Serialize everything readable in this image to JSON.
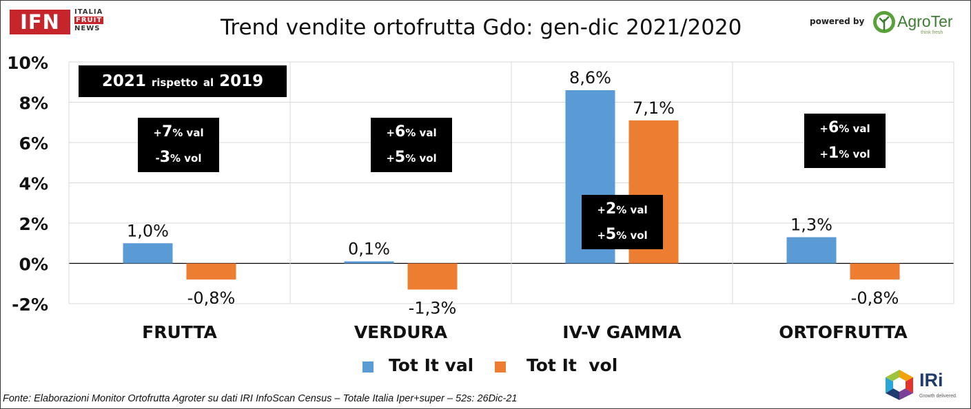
{
  "header": {
    "title": "Trend vendite ortofrutta Gdo: gen-dic 2021/2020",
    "logo_ifn": {
      "mark": "IFN",
      "line1": "ITALIA",
      "line2": "FRUIT",
      "line3": "NEWS"
    },
    "powered_by": "powered by",
    "logo_agroter": {
      "name": "AgroTer",
      "tagline": "think fresh"
    }
  },
  "note": {
    "year_a": "2021",
    "mid1": "rispetto",
    "mid2": "al",
    "year_b": "2019"
  },
  "annotations": [
    {
      "val_sign": "+",
      "val_num": "7",
      "val_unit": "% val",
      "vol_sign": "-",
      "vol_num": "3",
      "vol_unit": "% vol"
    },
    {
      "val_sign": "+",
      "val_num": "6",
      "val_unit": "% val",
      "vol_sign": "+",
      "vol_num": "5",
      "vol_unit": "% vol"
    },
    {
      "val_sign": "+",
      "val_num": "2",
      "val_unit": "% val",
      "vol_sign": "+",
      "vol_num": "5",
      "vol_unit": "% vol"
    },
    {
      "val_sign": "+",
      "val_num": "6",
      "val_unit": "% val",
      "vol_sign": "+",
      "vol_num": "1",
      "vol_unit": "% vol"
    }
  ],
  "chart_data": {
    "type": "bar",
    "title": "Trend vendite ortofrutta Gdo: gen-dic 2021/2020",
    "categories": [
      "FRUTTA",
      "VERDURA",
      "IV-V GAMMA",
      "ORTOFRUTTA"
    ],
    "series": [
      {
        "name": "Tot It val",
        "color": "#5b9bd5",
        "values": [
          1.0,
          0.1,
          8.6,
          1.3
        ],
        "labels": [
          "1,0%",
          "0,1%",
          "8,6%",
          "1,3%"
        ]
      },
      {
        "name": "Tot It  vol",
        "color": "#ed7d31",
        "values": [
          -0.8,
          -1.3,
          7.1,
          -0.8
        ],
        "labels": [
          "-0,8%",
          "-1,3%",
          "7,1%",
          "-0,8%"
        ]
      }
    ],
    "ylim": [
      -2,
      10
    ],
    "yticks": [
      10,
      8,
      6,
      4,
      2,
      0,
      -2
    ],
    "ytick_labels": [
      "10%",
      "8%",
      "6%",
      "4%",
      "2%",
      "0%",
      "-2%"
    ],
    "grid": true,
    "legend_position": "bottom"
  },
  "footer": {
    "source": "Fonte: Elaborazioni Monitor Ortofrutta Agroter su dati IRI InfoScan Census – Totale Italia Iper+super – 52s: 26Dic-21",
    "logo_iri": {
      "name": "IRi",
      "tagline": "Growth delivered."
    }
  }
}
